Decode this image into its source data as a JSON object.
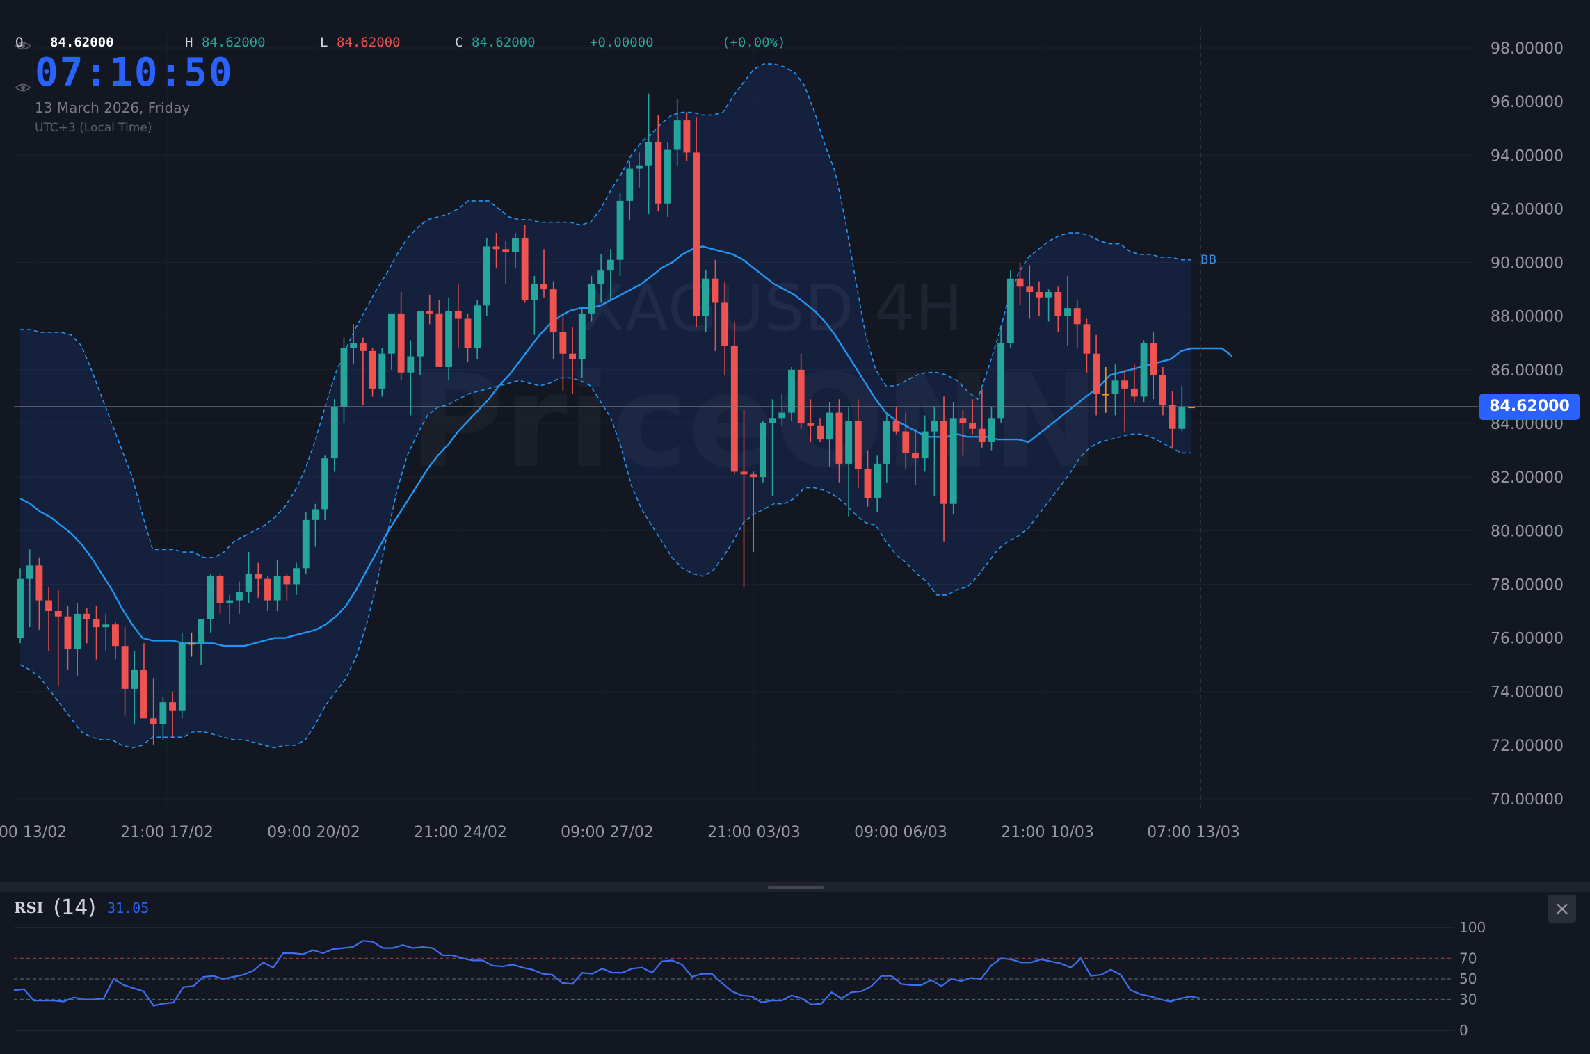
{
  "header": {
    "open_label": "O",
    "open_value": "84.62000",
    "high_label": "H",
    "high_value": "84.62000",
    "low_label": "L",
    "low_value": "84.62000",
    "close_label": "C",
    "close_value": "84.62000",
    "change": "+0.00000",
    "change_pct": "(+0.00%)",
    "clock": "07:10:50",
    "date": "13 March 2026, Friday",
    "timezone": "UTC+3 (Local Time)"
  },
  "watermark": {
    "line1": "XAGUSD 4H",
    "line2": "PriceONN"
  },
  "indicator_label": "BB",
  "last_price_label": "84.62000",
  "rsi": {
    "name": "RSI",
    "param": "(14)",
    "value": "31.05"
  },
  "colors": {
    "up": "#26a69a",
    "down": "#ef5350",
    "accent": "#2962ff",
    "bb": "#2196f3",
    "rsi": "#3d6ff0"
  },
  "icons": [
    "eye-icon",
    "close-icon"
  ],
  "chart_data": [
    {
      "type": "candlestick",
      "title": "XAGUSD 4H",
      "ylim": [
        70,
        98
      ],
      "yticks": [
        "70.00000",
        "72.00000",
        "74.00000",
        "76.00000",
        "78.00000",
        "80.00000",
        "82.00000",
        "84.00000",
        "86.00000",
        "88.00000",
        "90.00000",
        "92.00000",
        "94.00000",
        "96.00000",
        "98.00000"
      ],
      "xticks": [
        "00 13/02",
        "21:00 17/02",
        "09:00 20/02",
        "21:00 24/02",
        "09:00 27/02",
        "21:00 03/03",
        "09:00 06/03",
        "21:00 10/03",
        "07:00 13/03"
      ],
      "last_price": 84.62,
      "grid": true,
      "candles": [
        [
          76.0,
          78.6,
          75.8,
          78.2
        ],
        [
          78.2,
          79.3,
          76.4,
          78.7
        ],
        [
          78.7,
          79.0,
          76.3,
          77.4
        ],
        [
          77.4,
          77.9,
          75.5,
          77.0
        ],
        [
          77.0,
          77.8,
          74.2,
          76.8
        ],
        [
          76.8,
          77.2,
          74.8,
          75.6
        ],
        [
          75.6,
          77.3,
          74.6,
          76.9
        ],
        [
          76.9,
          77.1,
          75.8,
          76.7
        ],
        [
          76.7,
          77.2,
          75.2,
          76.4
        ],
        [
          76.4,
          76.9,
          75.5,
          76.5
        ],
        [
          76.5,
          76.6,
          75.2,
          75.7
        ],
        [
          75.7,
          76.4,
          73.1,
          74.1
        ],
        [
          74.1,
          75.5,
          72.8,
          74.8
        ],
        [
          74.8,
          75.8,
          73.1,
          73.0
        ],
        [
          73.0,
          74.5,
          72.0,
          72.8
        ],
        [
          72.8,
          73.8,
          72.2,
          73.6
        ],
        [
          73.6,
          74.0,
          72.3,
          73.3
        ],
        [
          73.3,
          76.2,
          73.0,
          75.8
        ],
        [
          75.8,
          76.2,
          75.3,
          75.8
        ],
        [
          75.8,
          76.5,
          75.0,
          76.7
        ],
        [
          76.7,
          78.4,
          76.2,
          78.3
        ],
        [
          78.3,
          78.4,
          76.9,
          77.3
        ],
        [
          77.3,
          77.6,
          76.5,
          77.4
        ],
        [
          77.4,
          78.1,
          76.9,
          77.7
        ],
        [
          77.7,
          79.2,
          77.3,
          78.4
        ],
        [
          78.4,
          78.8,
          77.5,
          78.2
        ],
        [
          78.2,
          78.3,
          77.0,
          77.4
        ],
        [
          77.4,
          78.9,
          77.0,
          78.3
        ],
        [
          78.3,
          78.4,
          77.4,
          78.0
        ],
        [
          78.0,
          78.8,
          77.6,
          78.6
        ],
        [
          78.6,
          80.7,
          78.4,
          80.4
        ],
        [
          80.4,
          81.0,
          79.4,
          80.8
        ],
        [
          80.8,
          82.8,
          80.4,
          82.7
        ],
        [
          82.7,
          84.9,
          82.2,
          84.6
        ],
        [
          84.6,
          87.2,
          84.0,
          86.8
        ],
        [
          86.8,
          87.7,
          86.2,
          87.0
        ],
        [
          87.0,
          87.2,
          84.7,
          86.7
        ],
        [
          86.7,
          86.8,
          85.0,
          85.3
        ],
        [
          85.3,
          86.8,
          85.0,
          86.6
        ],
        [
          86.6,
          88.1,
          86.0,
          88.1
        ],
        [
          88.1,
          88.9,
          85.6,
          85.9
        ],
        [
          85.9,
          87.1,
          84.3,
          86.5
        ],
        [
          86.5,
          88.2,
          85.8,
          88.2
        ],
        [
          88.2,
          88.8,
          87.7,
          88.1
        ],
        [
          88.1,
          88.6,
          86.1,
          86.1
        ],
        [
          86.1,
          88.7,
          85.6,
          88.2
        ],
        [
          88.2,
          89.2,
          86.8,
          87.9
        ],
        [
          87.9,
          88.1,
          86.3,
          86.8
        ],
        [
          86.8,
          88.6,
          86.4,
          88.4
        ],
        [
          88.4,
          90.9,
          88.0,
          90.6
        ],
        [
          90.6,
          91.1,
          89.8,
          90.5
        ],
        [
          90.5,
          90.8,
          89.2,
          90.4
        ],
        [
          90.4,
          91.1,
          89.8,
          90.9
        ],
        [
          90.9,
          91.4,
          88.5,
          88.6
        ],
        [
          88.6,
          89.5,
          87.3,
          89.2
        ],
        [
          89.2,
          90.5,
          88.7,
          89.0
        ],
        [
          89.0,
          89.3,
          86.4,
          87.4
        ],
        [
          87.4,
          88.1,
          85.2,
          86.6
        ],
        [
          86.6,
          87.6,
          85.1,
          86.4
        ],
        [
          86.4,
          88.3,
          85.7,
          88.1
        ],
        [
          88.1,
          89.5,
          87.8,
          89.2
        ],
        [
          89.2,
          90.3,
          88.5,
          89.7
        ],
        [
          89.7,
          90.5,
          88.6,
          90.1
        ],
        [
          90.1,
          92.6,
          89.5,
          92.3
        ],
        [
          92.3,
          93.8,
          91.6,
          93.5
        ],
        [
          93.5,
          94.1,
          92.8,
          93.6
        ],
        [
          93.6,
          96.3,
          91.8,
          94.5
        ],
        [
          94.5,
          95.5,
          91.9,
          92.2
        ],
        [
          92.2,
          94.5,
          91.7,
          94.2
        ],
        [
          94.2,
          96.1,
          93.6,
          95.3
        ],
        [
          95.3,
          95.6,
          93.8,
          94.1
        ],
        [
          94.1,
          95.4,
          87.6,
          88.0
        ],
        [
          88.0,
          89.7,
          87.4,
          89.4
        ],
        [
          89.4,
          90.1,
          86.7,
          88.5
        ],
        [
          88.5,
          89.3,
          85.8,
          86.9
        ],
        [
          86.9,
          87.8,
          82.1,
          82.2
        ],
        [
          82.2,
          84.5,
          77.9,
          82.1
        ],
        [
          82.1,
          82.2,
          79.2,
          82.0
        ],
        [
          82.0,
          84.1,
          81.8,
          84.0
        ],
        [
          84.0,
          84.9,
          81.3,
          84.2
        ],
        [
          84.2,
          85.1,
          83.9,
          84.4
        ],
        [
          84.4,
          86.1,
          84.1,
          86.0
        ],
        [
          86.0,
          86.6,
          83.8,
          84.0
        ],
        [
          84.0,
          84.9,
          83.3,
          83.9
        ],
        [
          83.9,
          84.2,
          83.3,
          83.4
        ],
        [
          83.4,
          84.8,
          82.4,
          84.4
        ],
        [
          84.4,
          84.9,
          81.8,
          82.5
        ],
        [
          82.5,
          84.6,
          80.5,
          84.1
        ],
        [
          84.1,
          84.9,
          81.6,
          82.3
        ],
        [
          82.3,
          83.0,
          80.9,
          81.2
        ],
        [
          81.2,
          82.8,
          80.7,
          82.5
        ],
        [
          82.5,
          84.4,
          81.8,
          84.1
        ],
        [
          84.1,
          84.6,
          83.6,
          83.7
        ],
        [
          83.7,
          84.4,
          82.3,
          82.9
        ],
        [
          82.9,
          83.8,
          81.7,
          82.7
        ],
        [
          82.7,
          84.3,
          82.2,
          83.7
        ],
        [
          83.7,
          84.6,
          81.3,
          84.1
        ],
        [
          84.1,
          85.0,
          79.6,
          81.0
        ],
        [
          81.0,
          84.8,
          80.6,
          84.2
        ],
        [
          84.2,
          84.5,
          82.8,
          84.0
        ],
        [
          84.0,
          84.9,
          83.6,
          83.8
        ],
        [
          83.8,
          85.3,
          83.1,
          83.3
        ],
        [
          83.3,
          84.6,
          83.0,
          84.2
        ],
        [
          84.2,
          87.6,
          84.0,
          87.0
        ],
        [
          87.0,
          89.7,
          86.8,
          89.4
        ],
        [
          89.4,
          90.0,
          88.4,
          89.1
        ],
        [
          89.1,
          89.9,
          87.9,
          88.9
        ],
        [
          88.9,
          89.3,
          88.0,
          88.7
        ],
        [
          88.7,
          89.0,
          87.8,
          88.9
        ],
        [
          88.9,
          89.1,
          87.4,
          88.0
        ],
        [
          88.0,
          89.5,
          86.9,
          88.3
        ],
        [
          88.3,
          88.6,
          86.8,
          87.7
        ],
        [
          87.7,
          87.9,
          85.9,
          86.6
        ],
        [
          86.6,
          87.3,
          84.3,
          85.1
        ],
        [
          85.1,
          86.1,
          84.4,
          85.1
        ],
        [
          85.1,
          86.2,
          84.3,
          85.6
        ],
        [
          85.6,
          86.0,
          83.7,
          85.3
        ],
        [
          85.3,
          86.2,
          84.8,
          85.0
        ],
        [
          85.0,
          87.1,
          84.8,
          87.0
        ],
        [
          87.0,
          87.4,
          84.9,
          85.8
        ],
        [
          85.8,
          86.1,
          84.3,
          84.7
        ],
        [
          84.7,
          85.2,
          83.1,
          83.8
        ],
        [
          83.8,
          85.4,
          83.7,
          84.62
        ],
        [
          84.62,
          84.62,
          84.62,
          84.62
        ]
      ],
      "bollinger_basis": [
        81.2,
        81.0,
        80.7,
        80.5,
        80.2,
        79.9,
        79.5,
        79.0,
        78.4,
        77.8,
        77.1,
        76.5,
        76.0,
        75.9,
        75.9,
        75.9,
        75.8,
        75.8,
        75.8,
        75.8,
        75.7,
        75.7,
        75.7,
        75.8,
        75.9,
        76.0,
        76.0,
        76.1,
        76.2,
        76.3,
        76.5,
        76.8,
        77.2,
        77.8,
        78.5,
        79.2,
        79.9,
        80.5,
        81.1,
        81.7,
        82.3,
        82.8,
        83.2,
        83.7,
        84.1,
        84.5,
        84.9,
        85.4,
        85.8,
        86.3,
        86.8,
        87.3,
        87.7,
        88.0,
        88.2,
        88.3,
        88.3,
        88.4,
        88.6,
        88.8,
        89.0,
        89.2,
        89.5,
        89.8,
        90.0,
        90.3,
        90.5,
        90.6,
        90.5,
        90.4,
        90.3,
        90.1,
        89.8,
        89.5,
        89.2,
        89.0,
        88.8,
        88.5,
        88.2,
        87.8,
        87.3,
        86.7,
        86.1,
        85.5,
        84.9,
        84.4,
        84.1,
        83.9,
        83.7,
        83.5,
        83.5,
        83.5,
        83.6,
        83.5,
        83.5,
        83.5,
        83.4,
        83.4,
        83.4,
        83.3,
        83.6,
        83.9,
        84.2,
        84.5,
        84.8,
        85.1,
        85.4,
        85.8,
        85.9,
        86.0,
        86.1,
        86.2,
        86.3,
        86.4,
        86.7,
        86.8,
        86.8,
        86.8,
        86.8,
        86.5
      ],
      "bollinger_upper": [
        87.5,
        87.5,
        87.4,
        87.4,
        87.4,
        87.3,
        86.9,
        86.0,
        85.0,
        84.0,
        83.0,
        82.0,
        80.6,
        79.3,
        79.3,
        79.3,
        79.2,
        79.2,
        79.0,
        79.0,
        79.2,
        79.6,
        79.8,
        80.0,
        80.2,
        80.5,
        80.9,
        81.5,
        82.3,
        83.4,
        84.7,
        85.9,
        86.8,
        87.6,
        88.3,
        89.0,
        89.6,
        90.3,
        90.9,
        91.3,
        91.6,
        91.7,
        91.8,
        92.0,
        92.3,
        92.3,
        92.3,
        92.0,
        91.7,
        91.6,
        91.6,
        91.5,
        91.5,
        91.5,
        91.5,
        91.4,
        91.5,
        92.0,
        92.7,
        93.3,
        94.0,
        94.5,
        94.8,
        95.2,
        95.5,
        95.6,
        95.6,
        95.5,
        95.5,
        95.6,
        96.2,
        96.7,
        97.2,
        97.4,
        97.4,
        97.3,
        97.1,
        96.6,
        95.6,
        94.4,
        93.4,
        91.6,
        89.4,
        87.3,
        86.0,
        85.4,
        85.4,
        85.6,
        85.8,
        85.9,
        85.9,
        85.8,
        85.6,
        85.2,
        84.9,
        86.0,
        87.2,
        88.6,
        89.6,
        90.2,
        90.5,
        90.8,
        91.0,
        91.1,
        91.1,
        91.0,
        90.8,
        90.7,
        90.7,
        90.4,
        90.3,
        90.3,
        90.2,
        90.2,
        90.1,
        90.1
      ],
      "bollinger_lower": [
        75.0,
        74.8,
        74.5,
        74.0,
        73.5,
        73.0,
        72.5,
        72.3,
        72.2,
        72.2,
        72.0,
        71.9,
        72.0,
        72.3,
        72.3,
        72.3,
        72.3,
        72.5,
        72.5,
        72.4,
        72.3,
        72.2,
        72.2,
        72.1,
        72.0,
        71.9,
        72.0,
        72.0,
        72.2,
        72.8,
        73.5,
        74.0,
        74.5,
        75.3,
        76.5,
        78.0,
        79.8,
        81.5,
        82.8,
        83.6,
        84.3,
        84.6,
        84.7,
        84.9,
        85.1,
        85.2,
        85.3,
        85.4,
        85.5,
        85.6,
        85.5,
        85.4,
        85.5,
        85.7,
        85.7,
        85.6,
        85.4,
        84.8,
        84.2,
        83.1,
        81.7,
        80.8,
        80.2,
        79.6,
        79.0,
        78.6,
        78.4,
        78.3,
        78.5,
        79.0,
        79.6,
        80.3,
        80.6,
        80.8,
        81.0,
        81.0,
        81.2,
        81.6,
        81.6,
        81.5,
        81.3,
        81.0,
        80.6,
        80.3,
        80.2,
        79.6,
        79.1,
        78.8,
        78.4,
        78.1,
        77.6,
        77.6,
        77.8,
        77.9,
        78.3,
        78.8,
        79.3,
        79.6,
        79.8,
        80.1,
        80.6,
        81.1,
        81.6,
        82.1,
        82.7,
        83.1,
        83.3,
        83.4,
        83.5,
        83.6,
        83.6,
        83.5,
        83.3,
        83.1,
        82.9,
        82.9
      ]
    },
    {
      "type": "line",
      "title": "RSI (14)",
      "ylim": [
        0,
        100
      ],
      "yticks": [
        "0",
        "30",
        "50",
        "70",
        "100"
      ],
      "levels": [
        70,
        50,
        30
      ],
      "series": [
        {
          "name": "RSI",
          "values": [
            39,
            40,
            29,
            29,
            29,
            28,
            32,
            30,
            30,
            31,
            50,
            44,
            41,
            38,
            24,
            26,
            27,
            42,
            43,
            52,
            53,
            50,
            52,
            54,
            58,
            66,
            61,
            75,
            75,
            74,
            78,
            75,
            79,
            80,
            81,
            87,
            86,
            80,
            80,
            83,
            80,
            81,
            80,
            73,
            73,
            70,
            68,
            68,
            63,
            62,
            64,
            61,
            59,
            55,
            54,
            46,
            45,
            56,
            55,
            60,
            56,
            56,
            60,
            61,
            56,
            67,
            68,
            64,
            52,
            55,
            55,
            46,
            38,
            34,
            33,
            27,
            29,
            29,
            34,
            31,
            25,
            26,
            37,
            31,
            37,
            38,
            43,
            53,
            53,
            45,
            44,
            44,
            49,
            43,
            50,
            48,
            51,
            50,
            63,
            70,
            69,
            66,
            66,
            69,
            67,
            65,
            61,
            70,
            53,
            54,
            59,
            54,
            39,
            35,
            33,
            30,
            28,
            31,
            33,
            31
          ]
        }
      ],
      "last_value": 31.05
    }
  ]
}
